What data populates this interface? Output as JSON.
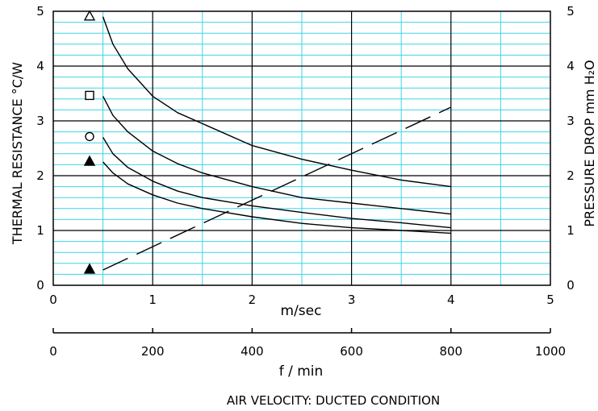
{
  "chart_data": {
    "type": "line",
    "title": "",
    "xlabel": "m/sec",
    "xlabel2": "f / min",
    "caption": "AIR VELOCITY:  DUCTED CONDITION",
    "ylabel_left": "THERMAL  RESISTANCE  °C/W",
    "ylabel_right": "PRESSURE  DROP   mm H₂O",
    "xlim": [
      0,
      5
    ],
    "ylim": [
      0,
      5
    ],
    "x_ticks": [
      "0",
      "1",
      "2",
      "3",
      "4",
      "5"
    ],
    "y_ticks": [
      "0",
      "1",
      "2",
      "3",
      "4",
      "5"
    ],
    "y2_ticks": [
      "0",
      "1",
      "2",
      "3",
      "4",
      "5"
    ],
    "x2_ticks": [
      "0",
      "200",
      "400",
      "600",
      "800",
      "1000"
    ],
    "grid": true,
    "series": [
      {
        "marker": "triangle-open",
        "axis": "left",
        "style": "solid",
        "x": [
          0.5,
          0.6,
          0.75,
          1.0,
          1.25,
          1.5,
          2.0,
          2.5,
          3.0,
          3.5,
          4.0
        ],
        "y": [
          4.9,
          4.4,
          3.95,
          3.45,
          3.15,
          2.95,
          2.55,
          2.3,
          2.1,
          1.92,
          1.8
        ]
      },
      {
        "marker": "square-open",
        "axis": "left",
        "style": "solid",
        "x": [
          0.5,
          0.6,
          0.75,
          1.0,
          1.25,
          1.5,
          2.0,
          2.5,
          3.0,
          3.5,
          4.0
        ],
        "y": [
          3.45,
          3.1,
          2.8,
          2.45,
          2.22,
          2.05,
          1.8,
          1.6,
          1.5,
          1.4,
          1.3
        ]
      },
      {
        "marker": "circle-open",
        "axis": "left",
        "style": "solid",
        "x": [
          0.5,
          0.6,
          0.75,
          1.0,
          1.25,
          1.5,
          2.0,
          2.5,
          3.0,
          3.5,
          4.0
        ],
        "y": [
          2.7,
          2.4,
          2.15,
          1.9,
          1.72,
          1.6,
          1.45,
          1.33,
          1.22,
          1.14,
          1.05
        ]
      },
      {
        "marker": "triangle-filled",
        "axis": "left",
        "style": "solid",
        "x": [
          0.5,
          0.6,
          0.75,
          1.0,
          1.25,
          1.5,
          2.0,
          2.5,
          3.0,
          3.5,
          4.0
        ],
        "y": [
          2.25,
          2.05,
          1.85,
          1.65,
          1.5,
          1.4,
          1.25,
          1.13,
          1.05,
          1.0,
          0.95
        ]
      },
      {
        "marker": "triangle-filled",
        "axis": "right",
        "style": "dashed",
        "x": [
          0.5,
          4.0
        ],
        "y": [
          0.28,
          3.25
        ]
      }
    ]
  }
}
